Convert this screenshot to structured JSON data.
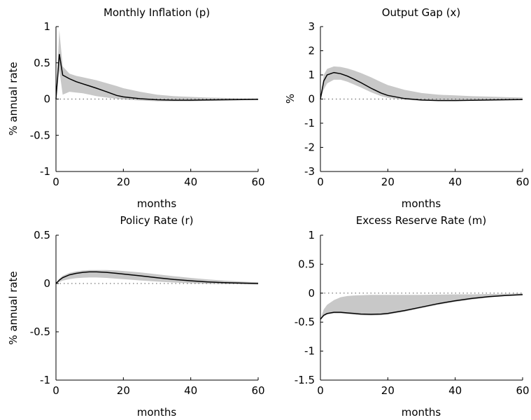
{
  "chart_data": [
    {
      "type": "line",
      "title": "Monthly Inflation (p)",
      "xlabel": "months",
      "ylabel": "% annual rate",
      "xlim": [
        0,
        60
      ],
      "ylim": [
        -1,
        1
      ],
      "xticks": [
        0,
        20,
        40,
        60
      ],
      "yticks": [
        -1,
        -0.5,
        0,
        0.5,
        1
      ],
      "xtick_labels": [
        "0",
        "20",
        "40",
        "60"
      ],
      "ytick_labels": [
        "-1",
        "-0.5",
        "0",
        "0.5",
        "1"
      ],
      "zero_line": true,
      "x": [
        0,
        1,
        2,
        4,
        6,
        8,
        10,
        12,
        15,
        18,
        20,
        25,
        30,
        35,
        40,
        45,
        50,
        55,
        60
      ],
      "mean": [
        0,
        0.62,
        0.33,
        0.28,
        0.24,
        0.21,
        0.18,
        0.15,
        0.1,
        0.05,
        0.03,
        0.005,
        -0.01,
        -0.015,
        -0.015,
        -0.012,
        -0.01,
        -0.008,
        -0.005
      ],
      "upper": [
        0,
        0.95,
        0.45,
        0.35,
        0.32,
        0.3,
        0.28,
        0.26,
        0.22,
        0.18,
        0.15,
        0.1,
        0.06,
        0.04,
        0.03,
        0.02,
        0.015,
        0.01,
        0.01
      ],
      "lower": [
        0,
        0.4,
        0.06,
        0.1,
        0.09,
        0.08,
        0.06,
        0.04,
        0.02,
        0.005,
        -0.005,
        -0.02,
        -0.03,
        -0.03,
        -0.03,
        -0.025,
        -0.02,
        -0.015,
        -0.01
      ]
    },
    {
      "type": "line",
      "title": "Output Gap (x)",
      "xlabel": "months",
      "ylabel": "%",
      "xlim": [
        0,
        60
      ],
      "ylim": [
        -3,
        3
      ],
      "xticks": [
        0,
        20,
        40,
        60
      ],
      "yticks": [
        -3,
        -2,
        -1,
        0,
        1,
        2,
        3
      ],
      "xtick_labels": [
        "0",
        "20",
        "40",
        "60"
      ],
      "ytick_labels": [
        "-3",
        "-2",
        "-1",
        "0",
        "1",
        "2",
        "3"
      ],
      "zero_line": true,
      "x": [
        0,
        1,
        2,
        4,
        6,
        8,
        10,
        12,
        15,
        18,
        20,
        25,
        30,
        35,
        40,
        45,
        50,
        55,
        60
      ],
      "mean": [
        0,
        0.75,
        1.0,
        1.1,
        1.05,
        0.95,
        0.82,
        0.68,
        0.45,
        0.25,
        0.15,
        0.02,
        -0.04,
        -0.06,
        -0.06,
        -0.05,
        -0.04,
        -0.03,
        -0.02
      ],
      "upper": [
        0,
        1.0,
        1.25,
        1.35,
        1.33,
        1.27,
        1.18,
        1.08,
        0.9,
        0.7,
        0.58,
        0.38,
        0.25,
        0.18,
        0.15,
        0.12,
        0.1,
        0.08,
        0.06
      ],
      "lower": [
        0,
        0.4,
        0.65,
        0.8,
        0.8,
        0.72,
        0.6,
        0.48,
        0.28,
        0.12,
        0.05,
        -0.03,
        -0.07,
        -0.08,
        -0.08,
        -0.07,
        -0.06,
        -0.05,
        -0.04
      ]
    },
    {
      "type": "line",
      "title": "Policy Rate (r)",
      "xlabel": "months",
      "ylabel": "% annual rate",
      "xlim": [
        0,
        60
      ],
      "ylim": [
        -1,
        0.5
      ],
      "xticks": [
        0,
        20,
        40,
        60
      ],
      "yticks": [
        -1,
        -0.5,
        0,
        0.5
      ],
      "xtick_labels": [
        "0",
        "20",
        "40",
        "60"
      ],
      "ytick_labels": [
        "-1",
        "-0.5",
        "0",
        "0.5"
      ],
      "zero_line": true,
      "x": [
        0,
        1,
        2,
        4,
        6,
        8,
        10,
        12,
        15,
        18,
        20,
        25,
        30,
        35,
        40,
        45,
        50,
        55,
        60
      ],
      "mean": [
        0,
        0.035,
        0.06,
        0.09,
        0.105,
        0.115,
        0.12,
        0.12,
        0.115,
        0.105,
        0.098,
        0.08,
        0.06,
        0.042,
        0.028,
        0.017,
        0.009,
        0.004,
        0.0
      ],
      "upper": [
        0,
        0.05,
        0.08,
        0.11,
        0.125,
        0.135,
        0.14,
        0.14,
        0.14,
        0.135,
        0.13,
        0.115,
        0.095,
        0.075,
        0.058,
        0.043,
        0.03,
        0.02,
        0.012
      ],
      "lower": [
        0,
        0.015,
        0.03,
        0.045,
        0.055,
        0.06,
        0.062,
        0.062,
        0.058,
        0.05,
        0.045,
        0.032,
        0.02,
        0.01,
        0.003,
        -0.003,
        -0.006,
        -0.008,
        -0.01
      ]
    },
    {
      "type": "line",
      "title": "Excess Reserve Rate (m)",
      "xlabel": "months",
      "ylabel": "",
      "xlim": [
        0,
        60
      ],
      "ylim": [
        -1.5,
        1
      ],
      "xticks": [
        0,
        20,
        40,
        60
      ],
      "yticks": [
        -1.5,
        -1,
        -0.5,
        0,
        0.5,
        1
      ],
      "xtick_labels": [
        "0",
        "20",
        "40",
        "60"
      ],
      "ytick_labels": [
        "-1.5",
        "-1",
        "-0.5",
        "0",
        "0.5",
        "1"
      ],
      "zero_line": true,
      "x": [
        0,
        1,
        2,
        4,
        6,
        8,
        10,
        12,
        15,
        18,
        20,
        25,
        30,
        35,
        40,
        45,
        50,
        55,
        60
      ],
      "mean": [
        -0.45,
        -0.38,
        -0.35,
        -0.33,
        -0.33,
        -0.34,
        -0.35,
        -0.36,
        -0.365,
        -0.36,
        -0.35,
        -0.3,
        -0.24,
        -0.18,
        -0.13,
        -0.09,
        -0.06,
        -0.04,
        -0.025
      ],
      "upper": [
        -0.45,
        -0.28,
        -0.2,
        -0.12,
        -0.07,
        -0.05,
        -0.04,
        -0.035,
        -0.03,
        -0.03,
        -0.03,
        -0.03,
        -0.03,
        -0.025,
        -0.02,
        -0.02,
        -0.015,
        -0.01,
        -0.005
      ],
      "lower": [
        -0.45,
        -0.4,
        -0.37,
        -0.35,
        -0.35,
        -0.36,
        -0.37,
        -0.38,
        -0.385,
        -0.38,
        -0.37,
        -0.32,
        -0.26,
        -0.2,
        -0.15,
        -0.11,
        -0.075,
        -0.05,
        -0.035
      ]
    }
  ],
  "style": {
    "band_color": "#c8c8c8",
    "line_color": "#000000",
    "zero_line_color": "#555555"
  }
}
